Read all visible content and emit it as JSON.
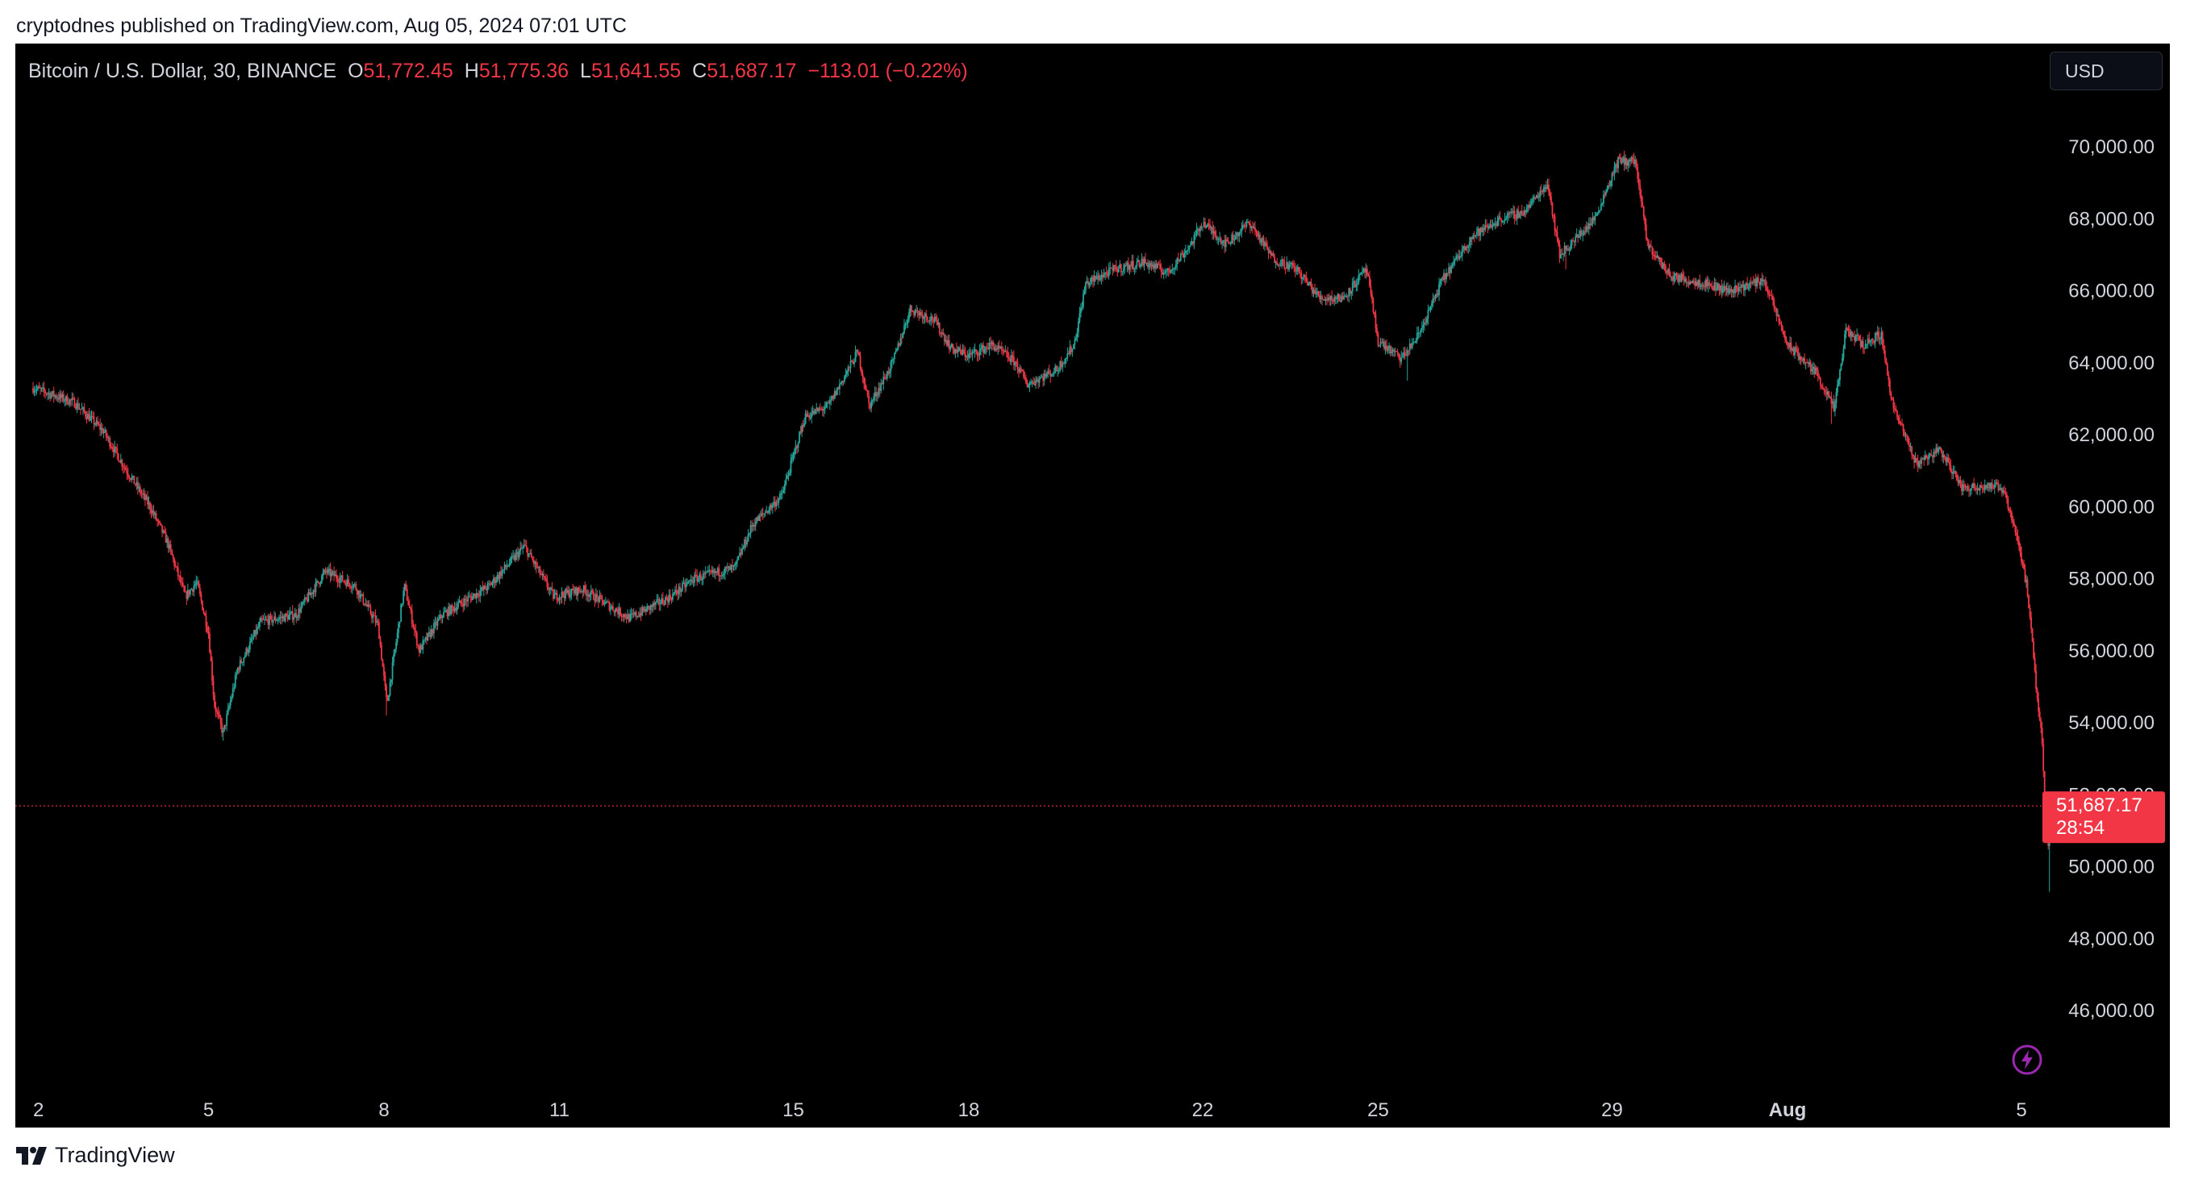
{
  "header": {
    "published": "cryptodnes published on TradingView.com, Aug 05, 2024 07:01 UTC"
  },
  "legend": {
    "symbol": "Bitcoin / U.S. Dollar, 30, BINANCE",
    "o_label": "O",
    "o_value": "51,772.45",
    "h_label": "H",
    "h_value": "51,775.36",
    "l_label": "L",
    "l_value": "51,641.55",
    "c_label": "C",
    "c_value": "51,687.17",
    "change": "−113.01 (−0.22%)"
  },
  "currency_button": {
    "label": "USD"
  },
  "price_tag": {
    "price": "51,687.17",
    "countdown": "28:54"
  },
  "footer": {
    "brand": "TradingView"
  },
  "colors": {
    "up": "#26a69a",
    "down": "#f23645",
    "background": "#000000",
    "axis_text": "#d1d4dc"
  },
  "chart_data": {
    "type": "candlestick",
    "interval": "30",
    "exchange": "BINANCE",
    "ylim": [
      44500,
      71500
    ],
    "y_ticks": [
      {
        "value": 46000,
        "label": "46,000.00"
      },
      {
        "value": 48000,
        "label": "48,000.00"
      },
      {
        "value": 50000,
        "label": "50,000.00"
      },
      {
        "value": 52000,
        "label": "52,000.00"
      },
      {
        "value": 54000,
        "label": "54,000.00"
      },
      {
        "value": 56000,
        "label": "56,000.00"
      },
      {
        "value": 58000,
        "label": "58,000.00"
      },
      {
        "value": 60000,
        "label": "60,000.00"
      },
      {
        "value": 62000,
        "label": "62,000.00"
      },
      {
        "value": 64000,
        "label": "64,000.00"
      },
      {
        "value": 66000,
        "label": "66,000.00"
      },
      {
        "value": 68000,
        "label": "68,000.00"
      },
      {
        "value": 70000,
        "label": "70,000.00"
      }
    ],
    "x_range_days": [
      2,
      36.3
    ],
    "x_ticks": [
      {
        "day": 2,
        "label": "2"
      },
      {
        "day": 5,
        "label": "5"
      },
      {
        "day": 8,
        "label": "8"
      },
      {
        "day": 11,
        "label": "11"
      },
      {
        "day": 15,
        "label": "15"
      },
      {
        "day": 18,
        "label": "18"
      },
      {
        "day": 22,
        "label": "22"
      },
      {
        "day": 25,
        "label": "25"
      },
      {
        "day": 29,
        "label": "29"
      },
      {
        "day": 32,
        "label": "Aug"
      },
      {
        "day": 36,
        "label": "5"
      }
    ],
    "last_price": 51687.17,
    "price_path": [
      [
        2.0,
        63300
      ],
      [
        2.7,
        62900
      ],
      [
        3.2,
        62100
      ],
      [
        3.6,
        61000
      ],
      [
        4.0,
        60000
      ],
      [
        4.3,
        59000
      ],
      [
        4.6,
        57500
      ],
      [
        4.8,
        57900
      ],
      [
        5.0,
        56500
      ],
      [
        5.1,
        54500
      ],
      [
        5.25,
        53700
      ],
      [
        5.5,
        55500
      ],
      [
        5.9,
        56800
      ],
      [
        6.5,
        57000
      ],
      [
        7.0,
        58200
      ],
      [
        7.5,
        57800
      ],
      [
        7.9,
        56700
      ],
      [
        8.05,
        54500
      ],
      [
        8.35,
        57800
      ],
      [
        8.6,
        56000
      ],
      [
        9.0,
        57000
      ],
      [
        9.8,
        57800
      ],
      [
        10.4,
        58900
      ],
      [
        10.9,
        57500
      ],
      [
        11.4,
        57700
      ],
      [
        11.8,
        57300
      ],
      [
        12.2,
        56900
      ],
      [
        12.9,
        57500
      ],
      [
        13.3,
        58000
      ],
      [
        14.0,
        58300
      ],
      [
        14.3,
        59500
      ],
      [
        14.8,
        60300
      ],
      [
        15.2,
        62500
      ],
      [
        15.6,
        62800
      ],
      [
        16.1,
        64300
      ],
      [
        16.3,
        62800
      ],
      [
        16.7,
        64000
      ],
      [
        17.0,
        65500
      ],
      [
        17.4,
        65200
      ],
      [
        17.7,
        64400
      ],
      [
        18.0,
        64200
      ],
      [
        18.4,
        64500
      ],
      [
        18.8,
        64000
      ],
      [
        19.0,
        63400
      ],
      [
        19.5,
        63800
      ],
      [
        19.8,
        64500
      ],
      [
        20.0,
        66200
      ],
      [
        20.5,
        66600
      ],
      [
        21.0,
        66800
      ],
      [
        21.4,
        66500
      ],
      [
        21.8,
        67300
      ],
      [
        22.0,
        67900
      ],
      [
        22.4,
        67300
      ],
      [
        22.8,
        67900
      ],
      [
        23.2,
        66900
      ],
      [
        23.6,
        66600
      ],
      [
        24.0,
        65800
      ],
      [
        24.4,
        65800
      ],
      [
        24.8,
        66600
      ],
      [
        25.0,
        64600
      ],
      [
        25.4,
        64100
      ],
      [
        25.7,
        64800
      ],
      [
        26.1,
        66300
      ],
      [
        26.6,
        67500
      ],
      [
        27.1,
        68000
      ],
      [
        27.5,
        68200
      ],
      [
        27.9,
        69000
      ],
      [
        28.1,
        67000
      ],
      [
        28.3,
        67300
      ],
      [
        28.7,
        68000
      ],
      [
        29.1,
        69600
      ],
      [
        29.4,
        69600
      ],
      [
        29.6,
        67300
      ],
      [
        30.0,
        66400
      ],
      [
        30.6,
        66200
      ],
      [
        31.0,
        66000
      ],
      [
        31.6,
        66300
      ],
      [
        32.0,
        64500
      ],
      [
        32.5,
        63700
      ],
      [
        32.8,
        62700
      ],
      [
        33.0,
        64900
      ],
      [
        33.3,
        64500
      ],
      [
        33.6,
        64800
      ],
      [
        33.8,
        62800
      ],
      [
        34.2,
        61200
      ],
      [
        34.6,
        61600
      ],
      [
        35.0,
        60500
      ],
      [
        35.4,
        60600
      ],
      [
        35.7,
        60500
      ],
      [
        35.95,
        59000
      ],
      [
        36.1,
        57700
      ],
      [
        36.25,
        55000
      ],
      [
        36.35,
        53500
      ],
      [
        36.45,
        50500
      ],
      [
        36.5,
        51687
      ]
    ],
    "shadow_spikes": [
      {
        "day": 5.25,
        "low": 53500
      },
      {
        "day": 8.05,
        "low": 54200
      },
      {
        "day": 25.5,
        "low": 63500
      },
      {
        "day": 28.2,
        "low": 66600
      },
      {
        "day": 32.75,
        "low": 62300
      },
      {
        "day": 36.47,
        "low": 49300
      }
    ]
  }
}
